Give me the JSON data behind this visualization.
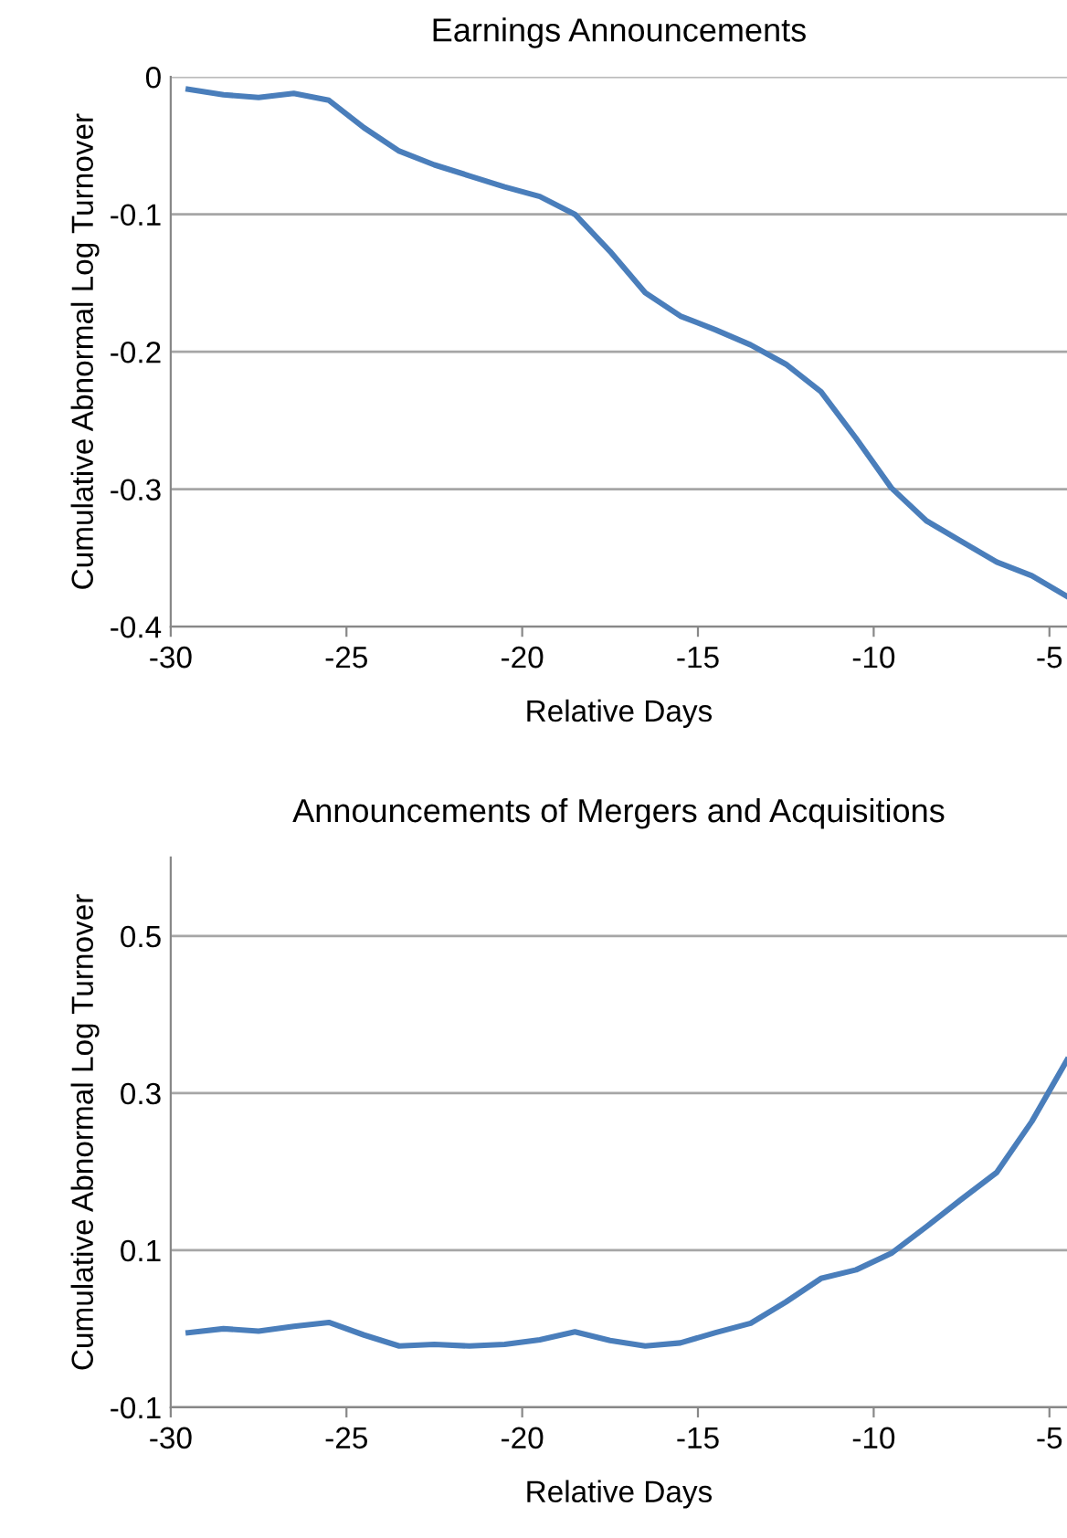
{
  "chart_data": [
    {
      "type": "line",
      "title": "Earnings Announcements",
      "xlabel": "Relative Days",
      "ylabel": "Cumulative Abnormal Log Turnover",
      "x": [
        -29.5,
        -28.5,
        -27.5,
        -26.5,
        -25.5,
        -24.5,
        -23.5,
        -22.5,
        -21.5,
        -20.5,
        -19.5,
        -18.5,
        -17.5,
        -16.5,
        -15.5,
        -14.5,
        -13.5,
        -12.5,
        -11.5,
        -10.5,
        -9.5,
        -8.5,
        -7.5,
        -6.5,
        -5.5,
        -4.5
      ],
      "series": [
        {
          "color": "#4a7ebb",
          "values": [
            -0.009,
            -0.013,
            -0.015,
            -0.012,
            -0.017,
            -0.037,
            -0.054,
            -0.064,
            -0.072,
            -0.08,
            -0.087,
            -0.1,
            -0.127,
            -0.157,
            -0.174,
            -0.184,
            -0.195,
            -0.209,
            -0.229,
            -0.263,
            -0.299,
            -0.323,
            -0.338,
            -0.353,
            -0.363,
            -0.378
          ]
        }
      ],
      "xlim": [
        -30,
        -4.5
      ],
      "xticks": [
        -30,
        -25,
        -20,
        -15,
        -10,
        -5
      ],
      "ylim": [
        -0.4,
        0
      ],
      "yticks": [
        -0.4,
        -0.3,
        -0.2,
        -0.1,
        0
      ],
      "grid": "y",
      "line_style": "solid",
      "marker": "none"
    },
    {
      "type": "line",
      "title": "Announcements of Mergers and Acquisitions",
      "xlabel": "Relative Days",
      "ylabel": "Cumulative Abnormal Log Turnover",
      "x": [
        -29.5,
        -28.5,
        -27.5,
        -26.5,
        -25.5,
        -24.5,
        -23.5,
        -22.5,
        -21.5,
        -20.5,
        -19.5,
        -18.5,
        -17.5,
        -16.5,
        -15.5,
        -14.5,
        -13.5,
        -12.5,
        -11.5,
        -10.5,
        -9.5,
        -8.5,
        -7.5,
        -6.5,
        -5.5,
        -4.5
      ],
      "series": [
        {
          "color": "#4a7ebb",
          "values": [
            -0.005,
            0.0,
            -0.003,
            0.003,
            0.008,
            -0.008,
            -0.022,
            -0.02,
            -0.022,
            -0.02,
            -0.014,
            -0.004,
            -0.015,
            -0.022,
            -0.018,
            -0.005,
            0.007,
            0.034,
            0.064,
            0.075,
            0.096,
            0.13,
            0.165,
            0.199,
            0.264,
            0.342
          ]
        }
      ],
      "xlim": [
        -30,
        -4.5
      ],
      "xticks": [
        -30,
        -25,
        -20,
        -15,
        -10,
        -5
      ],
      "ylim": [
        -0.1,
        0.6
      ],
      "yticks": [
        -0.1,
        0.1,
        0.3,
        0.5
      ],
      "grid": "y",
      "line_style": "solid",
      "marker": "none"
    }
  ]
}
